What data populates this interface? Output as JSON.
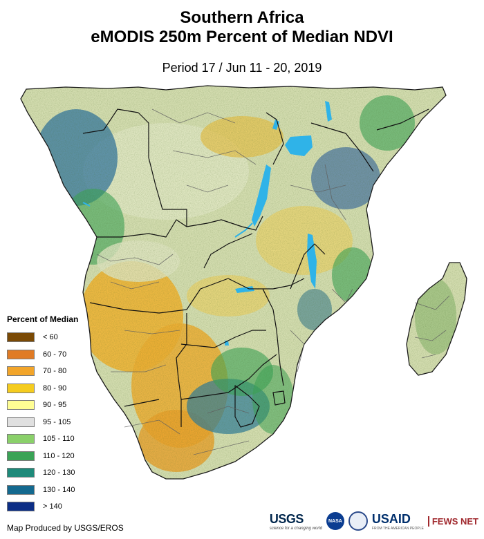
{
  "title_line1": "Southern Africa",
  "title_line2": "eMODIS 250m Percent of Median NDVI",
  "subtitle": "Period 17 / Jun 11 - 20, 2019",
  "legend": {
    "title": "Percent of Median",
    "items": [
      {
        "label": "< 60",
        "color": "#7a4a05"
      },
      {
        "label": "60 - 70",
        "color": "#e07b25"
      },
      {
        "label": "70 - 80",
        "color": "#f2a52a"
      },
      {
        "label": "80 - 90",
        "color": "#f5cc1f"
      },
      {
        "label": "90 - 95",
        "color": "#fffe94"
      },
      {
        "label": "95 - 105",
        "color": "#e0e0e0"
      },
      {
        "label": "105 - 110",
        "color": "#8ad06a"
      },
      {
        "label": "110 - 120",
        "color": "#3aa356"
      },
      {
        "label": "120 - 130",
        "color": "#1e8a7a"
      },
      {
        "label": "130 - 140",
        "color": "#14698f"
      },
      {
        "label": "> 140",
        "color": "#0c2e86"
      }
    ]
  },
  "credit": "Map Produced by USGS/EROS",
  "logos": {
    "usgs": "USGS",
    "usgs_tagline": "science for a changing world",
    "nasa": "NASA",
    "usaid": "USAID",
    "usaid_tagline": "FROM THE AMERICAN PEOPLE",
    "fews": "FEWS NET"
  }
}
